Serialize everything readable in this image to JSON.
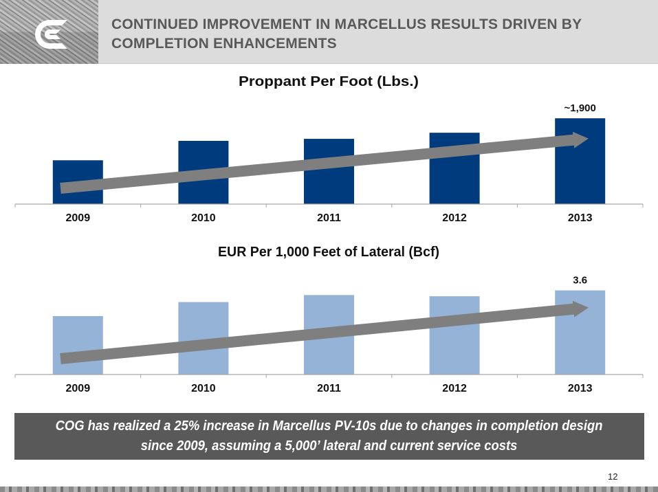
{
  "slide": {
    "title_line1": "CONTINUED IMPROVEMENT IN MARCELLUS RESULTS DRIVEN BY",
    "title_line2": "COMPLETION ENHANCEMENTS",
    "logo": "cabot-c-logo-icon",
    "callout_line1": "COG has realized a 25% increase in Marcellus PV-10s due to changes in completion design",
    "callout_line2": "since 2009, assuming a 5,000’ lateral and current service costs",
    "page_number": "12"
  },
  "colors": {
    "header_bg": "#dcdcdc",
    "title_text": "#595959",
    "chart1_bar": "#003b7d",
    "chart2_bar": "#95b3d7",
    "trend_arrow": "#7f7f7f",
    "callout_bg": "#595959"
  },
  "chart_data": [
    {
      "type": "bar",
      "title": "Proppant Per Foot (Lbs.)",
      "categories": [
        "2009",
        "2010",
        "2011",
        "2012",
        "2013"
      ],
      "values": [
        970,
        1400,
        1445,
        1580,
        1900
      ],
      "data_labels": [
        null,
        null,
        null,
        null,
        "~1,900"
      ],
      "xlabel": "",
      "ylabel": "",
      "ylim": [
        0,
        2100
      ],
      "grid": false,
      "legend": "none",
      "annotations": [
        "upward trend arrow from 2009 to 2013"
      ]
    },
    {
      "type": "bar",
      "title": "EUR Per 1,000 Feet of Lateral (Bcf)",
      "categories": [
        "2009",
        "2010",
        "2011",
        "2012",
        "2013"
      ],
      "values": [
        2.5,
        3.1,
        3.4,
        3.35,
        3.6
      ],
      "data_labels": [
        null,
        null,
        null,
        null,
        "3.6"
      ],
      "xlabel": "",
      "ylabel": "",
      "ylim": [
        0,
        4.0
      ],
      "grid": false,
      "legend": "none",
      "annotations": [
        "upward trend arrow from 2009 to 2013"
      ]
    }
  ]
}
